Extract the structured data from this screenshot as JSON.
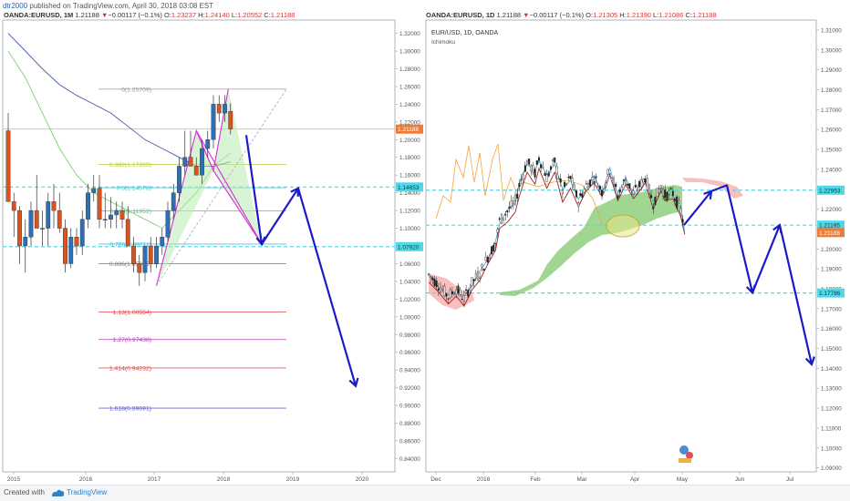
{
  "header": {
    "author": "dtr2000",
    "published_text": " published on TradingView.com, April 30, 2018 03:08 EST"
  },
  "footer": {
    "created_with": "Created with",
    "brand": "TradingView"
  },
  "colors": {
    "down_candle": "#d9531e",
    "up_candle": "#2d6fb4",
    "arrow": "#1a1ac8",
    "dash_line": "#52d7e6",
    "pattern": "#d62cd6",
    "pattern_fill": "#b9eab2",
    "ma_blue": "#4a5aa6",
    "ma_green": "#7fd073",
    "cloud_green": "#8fcf7f",
    "cloud_red": "#f7b4b4",
    "tenkan": "#4aa8d8",
    "kijun": "#a02020",
    "chikou": "#f2a33a",
    "price_tag_orange": "#f07a38"
  },
  "chart_data": [
    {
      "type": "candlestick",
      "symbol_line": {
        "symbol": "OANDA:EURUSD, 1M",
        "last": "1.21188",
        "change": "−0.00117 (−0.1%)",
        "O": "1.23237",
        "H": "1.24140",
        "L": "1.20552",
        "C": "1.21188"
      },
      "x_ticks": [
        "2015",
        "2016",
        "2017",
        "2018",
        "2019",
        "2020"
      ],
      "ylim": [
        0.825,
        1.335
      ],
      "y_ticks": [
        "1.32000",
        "1.30000",
        "1.28000",
        "1.26000",
        "1.24000",
        "1.22000",
        "1.20000",
        "1.18000",
        "1.16000",
        "1.14000",
        "1.12000",
        "1.10000",
        "1.08000",
        "1.06000",
        "1.04000",
        "1.02000",
        "1.00000",
        "0.98000",
        "0.96000",
        "0.94000",
        "0.92000",
        "0.90000",
        "0.88000",
        "0.86000",
        "0.84000"
      ],
      "candles": [
        [
          1.21,
          1.23,
          1.13,
          1.13
        ],
        [
          1.13,
          1.14,
          1.09,
          1.12
        ],
        [
          1.12,
          1.125,
          1.06,
          1.08
        ],
        [
          1.08,
          1.11,
          1.05,
          1.09
        ],
        [
          1.09,
          1.13,
          1.08,
          1.12
        ],
        [
          1.12,
          1.16,
          1.1,
          1.1
        ],
        [
          1.1,
          1.12,
          1.08,
          1.1
        ],
        [
          1.1,
          1.14,
          1.08,
          1.13
        ],
        [
          1.13,
          1.15,
          1.1,
          1.12
        ],
        [
          1.12,
          1.14,
          1.095,
          1.1
        ],
        [
          1.1,
          1.11,
          1.05,
          1.06
        ],
        [
          1.06,
          1.1,
          1.055,
          1.09
        ],
        [
          1.09,
          1.1,
          1.07,
          1.08
        ],
        [
          1.08,
          1.12,
          1.07,
          1.11
        ],
        [
          1.11,
          1.15,
          1.1,
          1.14
        ],
        [
          1.14,
          1.16,
          1.13,
          1.145
        ],
        [
          1.145,
          1.16,
          1.1,
          1.11
        ],
        [
          1.11,
          1.14,
          1.1,
          1.11
        ],
        [
          1.11,
          1.135,
          1.1,
          1.115
        ],
        [
          1.115,
          1.13,
          1.1,
          1.12
        ],
        [
          1.12,
          1.13,
          1.1,
          1.11
        ],
        [
          1.11,
          1.125,
          1.08,
          1.08
        ],
        [
          1.08,
          1.09,
          1.05,
          1.06
        ],
        [
          1.06,
          1.07,
          1.035,
          1.05
        ],
        [
          1.05,
          1.08,
          1.04,
          1.08
        ],
        [
          1.08,
          1.09,
          1.05,
          1.06
        ],
        [
          1.06,
          1.09,
          1.055,
          1.08
        ],
        [
          1.08,
          1.1,
          1.07,
          1.09
        ],
        [
          1.09,
          1.13,
          1.085,
          1.12
        ],
        [
          1.12,
          1.15,
          1.11,
          1.14
        ],
        [
          1.14,
          1.18,
          1.13,
          1.17
        ],
        [
          1.17,
          1.21,
          1.16,
          1.18
        ],
        [
          1.18,
          1.21,
          1.17,
          1.17
        ],
        [
          1.17,
          1.18,
          1.16,
          1.16
        ],
        [
          1.16,
          1.2,
          1.15,
          1.19
        ],
        [
          1.19,
          1.21,
          1.18,
          1.2
        ],
        [
          1.2,
          1.25,
          1.19,
          1.24
        ],
        [
          1.24,
          1.25,
          1.22,
          1.23
        ],
        [
          1.23,
          1.25,
          1.22,
          1.24
        ],
        [
          1.232,
          1.241,
          1.206,
          1.212
        ]
      ],
      "ma_blue": [
        [
          0,
          1.32
        ],
        [
          3,
          1.3
        ],
        [
          6,
          1.28
        ],
        [
          9,
          1.262
        ],
        [
          12,
          1.25
        ],
        [
          15,
          1.24
        ],
        [
          18,
          1.23
        ],
        [
          21,
          1.215
        ],
        [
          24,
          1.2
        ],
        [
          27,
          1.19
        ],
        [
          30,
          1.18
        ],
        [
          33,
          1.17
        ],
        [
          36,
          1.17
        ],
        [
          39,
          1.175
        ]
      ],
      "ma_green": [
        [
          0,
          1.3
        ],
        [
          3,
          1.27
        ],
        [
          6,
          1.23
        ],
        [
          9,
          1.19
        ],
        [
          12,
          1.16
        ],
        [
          15,
          1.14
        ],
        [
          18,
          1.13
        ],
        [
          21,
          1.12
        ],
        [
          24,
          1.11
        ],
        [
          27,
          1.1
        ],
        [
          30,
          1.12
        ],
        [
          33,
          1.14
        ],
        [
          36,
          1.17
        ],
        [
          39,
          1.185
        ]
      ],
      "current_price_label": "1.21188",
      "fib_levels": [
        {
          "label": "0(1.25709)",
          "value": 1.25709
        },
        {
          "label": "0.382(1.17205)",
          "value": 1.17205
        },
        {
          "label": "0.5(1.14578)",
          "value": 1.14578
        },
        {
          "label": "0.618(1.11952)",
          "value": 1.11952
        },
        {
          "label": "0.786(1.08211)",
          "value": 1.08211
        },
        {
          "label": "0.886(1.05985)",
          "value": 1.05985
        },
        {
          "label": "1.13(1.00554)",
          "value": 1.00554
        },
        {
          "label": "1.27(0.97438)",
          "value": 0.97438
        },
        {
          "label": "1.414(0.94232)",
          "value": 0.94232
        },
        {
          "label": "1.618(0.89691)",
          "value": 0.89691
        }
      ],
      "level_tags": [
        {
          "label": "1.14653",
          "value": 1.14653
        },
        {
          "label": "1.07920",
          "value": 1.0792
        }
      ]
    },
    {
      "type": "candlestick",
      "symbol_line": {
        "symbol": "OANDA:EURUSD, 1D",
        "last": "1.21188",
        "change": "−0.00117 (−0.1%)",
        "O": "1.21305",
        "H": "1.21390",
        "L": "1.21086",
        "C": "1.21188"
      },
      "legend": [
        "EUR/USD, 1D, OANDA",
        "Ichimoku"
      ],
      "x_ticks": [
        "Dec",
        "2018",
        "Feb",
        "Mar",
        "Apr",
        "May",
        "Jun",
        "Jul"
      ],
      "ylim": [
        1.088,
        1.315
      ],
      "y_ticks": [
        "1.31000",
        "1.30000",
        "1.29000",
        "1.28000",
        "1.27000",
        "1.26000",
        "1.25000",
        "1.24000",
        "1.23000",
        "1.22000",
        "1.21000",
        "1.20000",
        "1.19000",
        "1.18000",
        "1.17000",
        "1.16000",
        "1.15000",
        "1.14000",
        "1.13000",
        "1.12000",
        "1.11000",
        "1.10000",
        "1.09000"
      ],
      "price_path": [
        [
          0,
          1.187
        ],
        [
          5,
          1.182
        ],
        [
          10,
          1.176
        ],
        [
          14,
          1.18
        ],
        [
          18,
          1.175
        ],
        [
          22,
          1.183
        ],
        [
          26,
          1.188
        ],
        [
          30,
          1.196
        ],
        [
          34,
          1.203
        ],
        [
          36,
          1.214
        ],
        [
          40,
          1.219
        ],
        [
          44,
          1.224
        ],
        [
          46,
          1.232
        ],
        [
          50,
          1.244
        ],
        [
          54,
          1.238
        ],
        [
          56,
          1.246
        ],
        [
          60,
          1.236
        ],
        [
          64,
          1.244
        ],
        [
          68,
          1.229
        ],
        [
          72,
          1.236
        ],
        [
          76,
          1.224
        ],
        [
          80,
          1.232
        ],
        [
          84,
          1.236
        ],
        [
          88,
          1.229
        ],
        [
          92,
          1.24
        ],
        [
          96,
          1.227
        ],
        [
          100,
          1.235
        ],
        [
          104,
          1.228
        ],
        [
          108,
          1.233
        ],
        [
          110,
          1.236
        ],
        [
          114,
          1.223
        ],
        [
          118,
          1.232
        ],
        [
          120,
          1.227
        ],
        [
          124,
          1.228
        ],
        [
          128,
          1.219
        ],
        [
          130,
          1.21
        ]
      ],
      "current_price_label": "1.21188",
      "level_tags": [
        {
          "label": "1.22953",
          "value": 1.22953
        },
        {
          "label": "1.21195",
          "value": 1.21195
        },
        {
          "label": "1.17786",
          "value": 1.17786
        }
      ]
    }
  ]
}
